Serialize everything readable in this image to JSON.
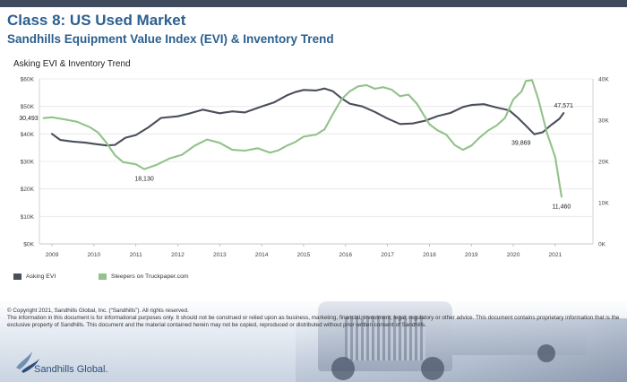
{
  "header": {
    "title": "Class 8:  US Used Market",
    "subtitle": "Sandhills Equipment Value Index (EVI) & Inventory Trend"
  },
  "colors": {
    "accent": "#2b5f8f",
    "evi_line": "#4a4f5c",
    "sleepers_line": "#92c28a",
    "top_bar": "#3f4a5c"
  },
  "chart_data": {
    "type": "line",
    "title": "Asking EVI & Inventory Trend",
    "x_ticks": [
      "2009",
      "2010",
      "2011",
      "2012",
      "2013",
      "2014",
      "2015",
      "2016",
      "2017",
      "2018",
      "2019",
      "2020",
      "2021"
    ],
    "xlim": [
      2008.7,
      2021.9
    ],
    "y_left": {
      "ticks": [
        "$0K",
        "$10K",
        "$20K",
        "$30K",
        "$40K",
        "$50K",
        "$60K"
      ],
      "ylim": [
        0,
        60000
      ]
    },
    "y_right": {
      "ticks": [
        "0K",
        "10K",
        "20K",
        "30K",
        "40K"
      ],
      "ylim": [
        0,
        40000
      ]
    },
    "grid": true,
    "legend_position": "bottom-left",
    "series": [
      {
        "name": "Asking EVI",
        "axis": "left",
        "color": "#4a4f5c",
        "x": [
          2009.0,
          2009.2,
          2009.5,
          2009.8,
          2010.0,
          2010.3,
          2010.5,
          2010.75,
          2011.0,
          2011.3,
          2011.6,
          2012.0,
          2012.3,
          2012.6,
          2013.0,
          2013.3,
          2013.6,
          2014.0,
          2014.3,
          2014.6,
          2014.8,
          2015.0,
          2015.3,
          2015.5,
          2015.7,
          2015.9,
          2016.1,
          2016.4,
          2016.7,
          2017.0,
          2017.3,
          2017.6,
          2017.9,
          2018.2,
          2018.5,
          2018.8,
          2019.0,
          2019.3,
          2019.6,
          2019.9,
          2020.1,
          2020.3,
          2020.5,
          2020.7,
          2020.9,
          2021.1,
          2021.2
        ],
        "values": [
          40000,
          37800,
          37200,
          36800,
          36400,
          35800,
          36000,
          38600,
          39600,
          42400,
          45800,
          46400,
          47500,
          48800,
          47500,
          48200,
          47800,
          50000,
          51500,
          54000,
          55200,
          56000,
          55800,
          56500,
          55500,
          53000,
          51000,
          50000,
          48000,
          45600,
          43600,
          43800,
          44800,
          46500,
          47600,
          49800,
          50500,
          50800,
          49600,
          48600,
          46000,
          43000,
          39869,
          40600,
          43200,
          45500,
          47571
        ]
      },
      {
        "name": "Sleepers on Truckpaper.com",
        "axis": "right",
        "color": "#92c28a",
        "x": [
          2008.8,
          2009.0,
          2009.3,
          2009.6,
          2009.9,
          2010.1,
          2010.3,
          2010.5,
          2010.7,
          2011.0,
          2011.2,
          2011.5,
          2011.8,
          2012.1,
          2012.4,
          2012.7,
          2013.0,
          2013.3,
          2013.6,
          2013.9,
          2014.2,
          2014.4,
          2014.6,
          2014.8,
          2015.0,
          2015.3,
          2015.5,
          2015.7,
          2015.9,
          2016.1,
          2016.3,
          2016.5,
          2016.7,
          2016.9,
          2017.1,
          2017.3,
          2017.5,
          2017.7,
          2018.0,
          2018.2,
          2018.4,
          2018.6,
          2018.8,
          2019.0,
          2019.2,
          2019.4,
          2019.6,
          2019.8,
          2020.0,
          2020.2,
          2020.3,
          2020.45,
          2020.6,
          2020.8,
          2021.0,
          2021.15
        ],
        "values": [
          30493,
          30700,
          30200,
          29600,
          28300,
          27000,
          24500,
          21500,
          19800,
          19300,
          18130,
          19200,
          20700,
          21600,
          23800,
          25300,
          24500,
          22800,
          22600,
          23200,
          22100,
          22700,
          23800,
          24700,
          26000,
          26500,
          27800,
          31500,
          35000,
          37000,
          38200,
          38500,
          37600,
          38000,
          37400,
          35800,
          36200,
          34000,
          29000,
          27500,
          26500,
          24000,
          22800,
          23800,
          25800,
          27500,
          28700,
          30500,
          35000,
          37000,
          39500,
          39700,
          35000,
          27000,
          21000,
          11460
        ]
      }
    ],
    "annotations": [
      {
        "text": "30,493",
        "series": 1,
        "point": 0,
        "anchor": "left"
      },
      {
        "text": "18,130",
        "series": 1,
        "point": 10,
        "anchor": "below"
      },
      {
        "text": "39,869",
        "series": 0,
        "point": 42,
        "anchor": "below-left"
      },
      {
        "text": "47,571",
        "series": 0,
        "point": 46,
        "anchor": "above"
      },
      {
        "text": "11,460",
        "series": 1,
        "point": 55,
        "anchor": "below"
      }
    ]
  },
  "footer": {
    "copyright": "© Copyright 2021, Sandhills Global, Inc. (“Sandhills”). All rights reserved.",
    "disclaimer": "The information in this document is for informational purposes only.  It should not be construed or relied upon as business, marketing, financial, investment, legal, regulatory or other advice. This document contains proprietary information that is the exclusive property of Sandhills. This document and the material contained herein may not be copied, reproduced or distributed without prior written consent of Sandhills.",
    "logo_text": "Sandhills Global."
  }
}
